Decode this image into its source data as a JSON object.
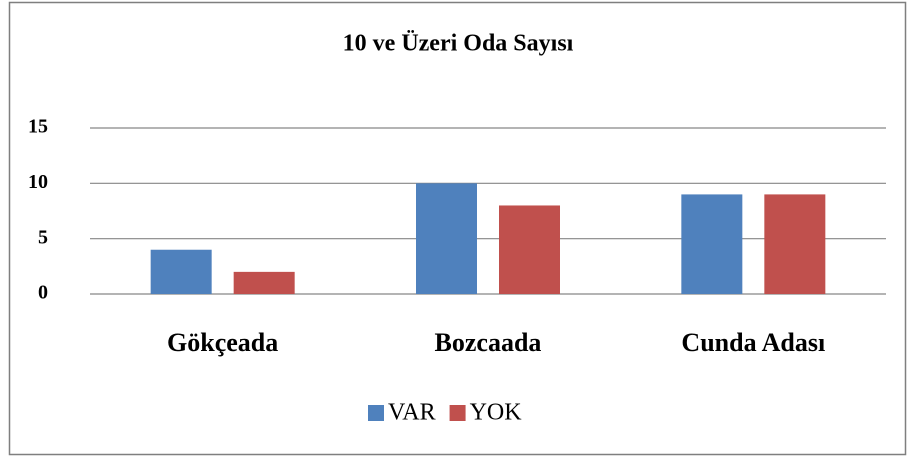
{
  "chart_data": {
    "type": "bar",
    "title": "10 ve Üzeri Oda Sayısı",
    "categories": [
      "Gökçeada",
      "Bozcaada",
      "Cunda Adası"
    ],
    "series": [
      {
        "name": "VAR",
        "color": "#4f81bd",
        "values": [
          4,
          10,
          9
        ]
      },
      {
        "name": "YOK",
        "color": "#c0504d",
        "values": [
          2,
          8,
          9
        ]
      }
    ],
    "ylim": [
      0,
      15
    ],
    "yticks": [
      0,
      5,
      10,
      15
    ],
    "grid": true,
    "legend": "bottom"
  }
}
